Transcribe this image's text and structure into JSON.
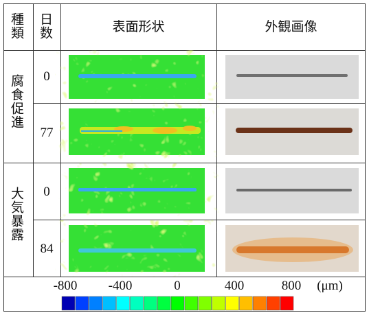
{
  "header": {
    "columns": [
      "種類",
      "日数",
      "表面形状",
      "外観画像"
    ]
  },
  "groups": [
    {
      "name": "腐食促進",
      "days": [
        0,
        77
      ]
    },
    {
      "name": "大気暴露",
      "days": [
        0,
        84
      ]
    }
  ],
  "scale": {
    "ticks": [
      -800,
      -400,
      0,
      400,
      800
    ],
    "unit": "(μm)"
  }
}
